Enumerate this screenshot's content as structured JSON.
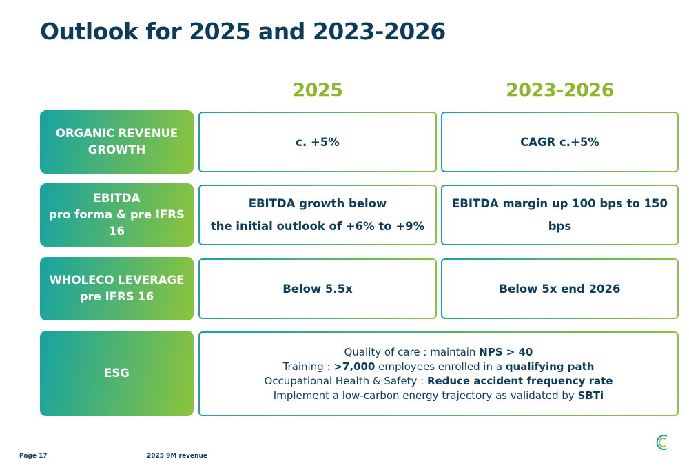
{
  "header": {
    "title": "Outlook for 2025 and 2023-2026"
  },
  "table": {
    "columns": [
      "2025",
      "2023-2026"
    ],
    "rows": [
      {
        "label": [
          "ORGANIC REVENUE",
          "GROWTH"
        ],
        "cells": [
          [
            "c. +5%"
          ],
          [
            "CAGR c.+5%"
          ]
        ]
      },
      {
        "label": [
          "EBITDA",
          "pro forma & pre IFRS 16"
        ],
        "cells": [
          [
            "EBITDA growth below",
            "the initial outlook of +6% to +9%"
          ],
          [
            "EBITDA margin up 100 bps to 150 bps"
          ]
        ]
      },
      {
        "label": [
          "WHOLECO LEVERAGE",
          "pre IFRS 16"
        ],
        "cells": [
          [
            "Below 5.5x"
          ],
          [
            "Below 5x end 2026"
          ]
        ]
      }
    ],
    "esg": {
      "label": [
        "ESG"
      ],
      "lines": [
        [
          {
            "text": "Quality of care : maintain",
            "bold": false
          },
          {
            "text": "NPS > 40",
            "bold": true
          }
        ],
        [
          {
            "text": "Training :",
            "bold": false
          },
          {
            "text": ">7,000",
            "bold": true
          },
          {
            "text": "employees enrolled in a",
            "bold": false
          },
          {
            "text": "qualifying path",
            "bold": true
          }
        ],
        [
          {
            "text": "Occupational Health & Safety :",
            "bold": false
          },
          {
            "text": "Reduce accident frequency rate",
            "bold": true
          }
        ],
        [
          {
            "text": "Implement a low-carbon energy trajectory as validated by",
            "bold": false
          },
          {
            "text": "SBTi",
            "bold": true
          }
        ]
      ]
    }
  },
  "footer": {
    "page": "Page 17",
    "document": "2025 9M revenue"
  }
}
